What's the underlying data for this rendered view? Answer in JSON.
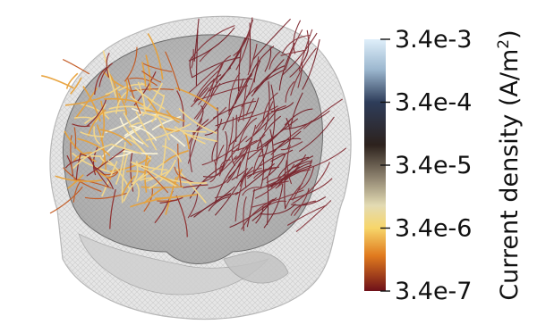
{
  "colorbar": {
    "title_main": "Current density (A/m",
    "title_exp": "2",
    "title_close": ")",
    "ticks": [
      "3.4e-3",
      "3.4e-4",
      "3.4e-5",
      "3.4e-6",
      "3.4e-7"
    ],
    "scale": "log",
    "range": [
      3.4e-07,
      0.0034
    ],
    "colors": {
      "top": "#dfeffa",
      "upper": "#2e3d5a",
      "mid": "#2d221d",
      "lower": "#d9d1a8",
      "yellow": "#f7d66a",
      "orange": "#e07a1e",
      "bottom": "#6e1019"
    }
  },
  "scene": {
    "head_mesh_color": "#bdbdbd",
    "brain_color": "#8a8a8a",
    "streamline_colors": [
      "#6e1019",
      "#8e2a2a",
      "#c45a22",
      "#e8a23a",
      "#f6d889",
      "#fff7d6"
    ]
  }
}
